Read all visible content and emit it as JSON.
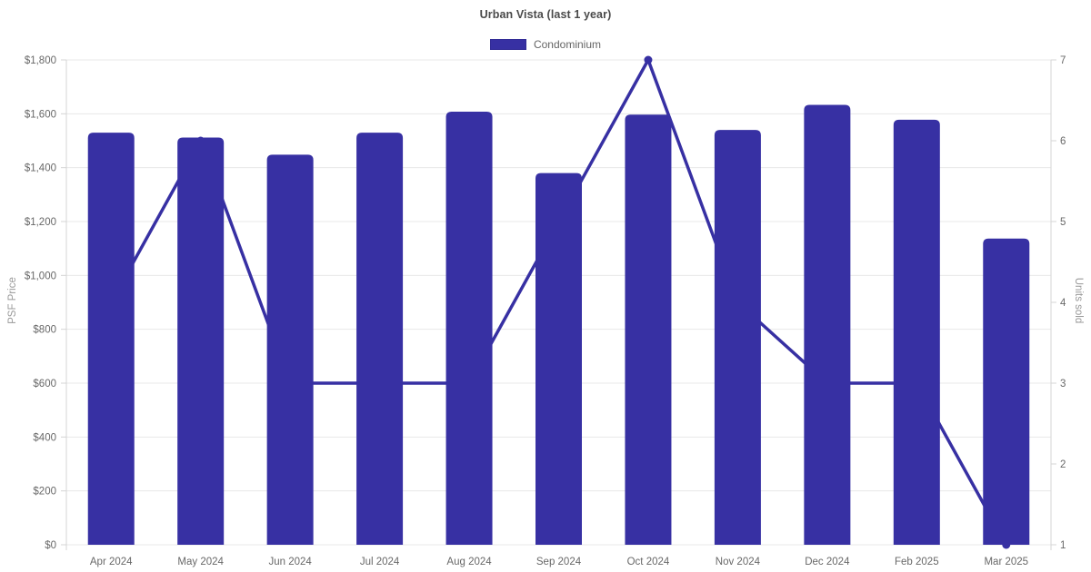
{
  "chart_data": {
    "type": "bar+line",
    "title": "Urban Vista (last 1 year)",
    "categories": [
      "Apr 2024",
      "May 2024",
      "Jun 2024",
      "Jul 2024",
      "Aug 2024",
      "Sep 2024",
      "Oct 2024",
      "Nov 2024",
      "Dec 2024",
      "Feb 2025",
      "Mar 2025"
    ],
    "series": [
      {
        "name": "Condominium",
        "type": "bar",
        "axis": "left",
        "values": [
          1530,
          1512,
          1448,
          1530,
          1608,
          1380,
          1597,
          1540,
          1633,
          1578,
          1137
        ]
      },
      {
        "name": "Units sold",
        "type": "line",
        "axis": "right",
        "values": [
          4,
          6,
          3,
          3,
          3,
          5,
          7,
          4,
          3,
          3,
          1
        ]
      }
    ],
    "left_axis": {
      "label": "PSF Price",
      "min": 0,
      "max": 1800,
      "step": 200,
      "ticks": [
        "$0",
        "$200",
        "$400",
        "$600",
        "$800",
        "$1,000",
        "$1,200",
        "$1,400",
        "$1,600",
        "$1,800"
      ]
    },
    "right_axis": {
      "label": "Units sold",
      "min": 1,
      "max": 7,
      "step": 1,
      "ticks": [
        "1",
        "2",
        "3",
        "4",
        "5",
        "6",
        "7"
      ]
    },
    "legend_position": "top-center",
    "grid": "horizontal-only",
    "colors": {
      "bar": "#3730a3",
      "line": "#3730a3",
      "point": "#3730a3",
      "gridline": "#e8e8e8",
      "axis_border": "#d4d4d4",
      "tick_text": "#686868",
      "axis_title_text": "#999999",
      "title_text": "#4a4a4a",
      "legend_text": "#666666",
      "background": "#ffffff"
    }
  }
}
